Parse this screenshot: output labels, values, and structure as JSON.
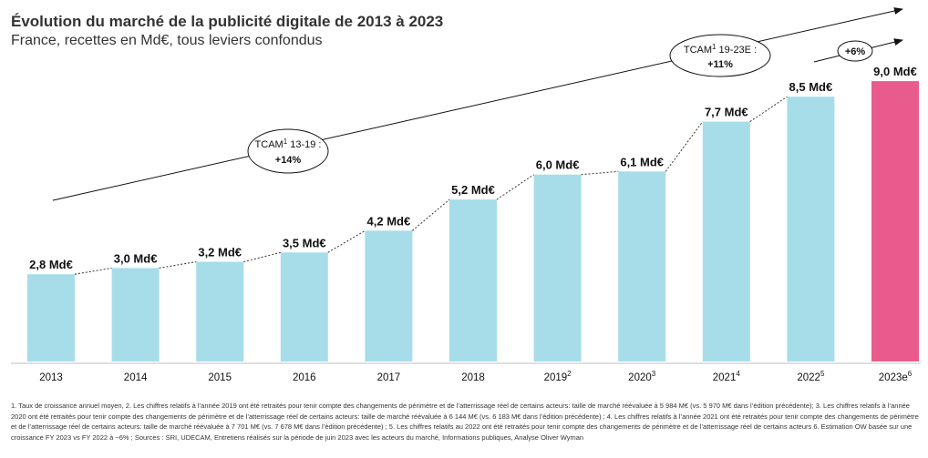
{
  "header": {
    "title": "Évolution du marché de la publicité digitale de 2013 à 2023",
    "subtitle": "France, recettes en Md€, tous leviers confondus"
  },
  "chart_data": {
    "type": "bar",
    "categories": [
      "2013",
      "2014",
      "2015",
      "2016",
      "2017",
      "2018",
      "2019",
      "2020",
      "2021",
      "2022",
      "2023e"
    ],
    "category_superscripts": [
      "",
      "",
      "",
      "",
      "",
      "",
      "2",
      "3",
      "4",
      "5",
      "6"
    ],
    "values": [
      2.8,
      3.0,
      3.2,
      3.5,
      4.2,
      5.2,
      6.0,
      6.1,
      7.7,
      8.5,
      9.0
    ],
    "value_labels": [
      "2,8 Md€",
      "3,0 Md€",
      "3,2 Md€",
      "3,5 Md€",
      "4,2 Md€",
      "5,2 Md€",
      "6,0 Md€",
      "6,1 Md€",
      "7,7 Md€",
      "8,5 Md€",
      "9,0 Md€"
    ],
    "bar_color": "#a6dde9",
    "highlight_color": "#ea5b8d",
    "highlight_index": 10,
    "ylim": [
      0,
      9.5
    ],
    "connector_style": "dotted",
    "annotations": [
      {
        "label_line1": "TCAM",
        "label_sup": "1",
        "label_rest": " 13-19 :",
        "label_line2": "+14%"
      },
      {
        "label_line1": "TCAM",
        "label_sup": "1",
        "label_rest": " 19-23E :",
        "label_line2": "+11%"
      },
      {
        "label_line1": "+6%",
        "label_sup": "",
        "label_rest": "",
        "label_line2": ""
      }
    ]
  },
  "footnote": {
    "text": "1. Taux de croissance annuel moyen, 2. Les chiffres relatifs à l’année 2019 ont été retraités pour tenir compte des changements de périmètre et de l’atterrissage réel de certains acteurs: taille de marché réévaluée à 5 984 M€ (vs. 5 970 M€ dans l’édition précédente); 3. Les chiffres relatifs à l’année 2020 ont été retraités pour tenir compte des changements de périmètre et de l’atterrissage réel de certains acteurs: taille de marché réévaluée à 6 144 M€ (vs. 6 183 M€ dans l’édition précédente) ; 4. Les chiffres relatifs à l’année 2021 ont été retraités pour tenir compte des changements de périmètre et de l’atterrissage réel de certains acteurs: taille de marché réévaluée à 7 701 M€ (vs. 7 678 M€ dans l’édition précédente) ; 5. Les chiffres relatifs au 2022 ont été retraités pour tenir compte des changements de périmètre et de l’atterrissage réel de certains acteurs 6. Estimation OW basée sur une croissance FY 2023 vs FY 2022 à ~6% ; Sources : SRI, UDECAM, Entretiens réalisés sur la période de juin 2023 avec les acteurs du marché, Informations publiques, Analyse Oliver Wyman"
  }
}
